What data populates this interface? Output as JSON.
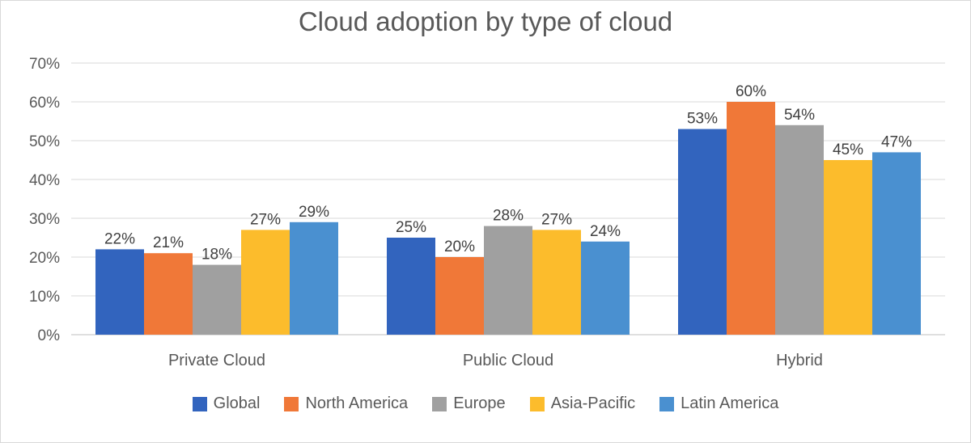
{
  "chart_data": {
    "type": "bar",
    "title": "Cloud adoption by type of cloud",
    "categories": [
      "Private Cloud",
      "Public Cloud",
      "Hybrid"
    ],
    "series": [
      {
        "name": "Global",
        "color": "#3264be",
        "values": [
          22,
          25,
          53
        ]
      },
      {
        "name": "North America",
        "color": "#f07838",
        "values": [
          21,
          20,
          60
        ]
      },
      {
        "name": "Europe",
        "color": "#a0a0a0",
        "values": [
          18,
          28,
          54
        ]
      },
      {
        "name": "Asia-Pacific",
        "color": "#fcbc2c",
        "values": [
          27,
          27,
          45
        ]
      },
      {
        "name": "Latin America",
        "color": "#4a90d0",
        "values": [
          29,
          24,
          47
        ]
      }
    ],
    "value_suffix": "%",
    "ylim": [
      0,
      70
    ],
    "yticks": [
      "0%",
      "10%",
      "20%",
      "30%",
      "40%",
      "50%",
      "60%",
      "70%"
    ],
    "grid": true,
    "legend_position": "bottom"
  }
}
